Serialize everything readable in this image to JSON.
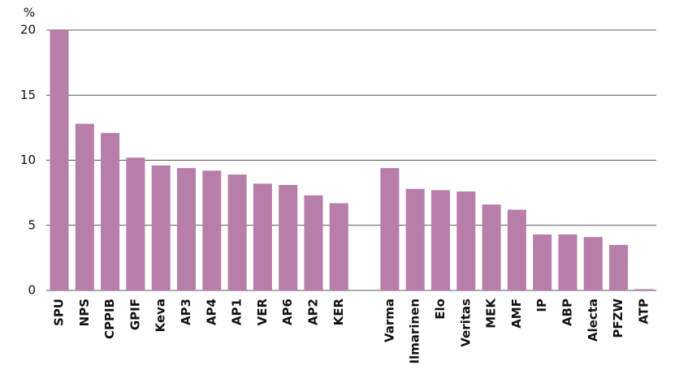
{
  "chart_data": {
    "type": "bar",
    "y_label": "%",
    "categories": [
      "SPU",
      "NPS",
      "CPPIB",
      "GPIF",
      "Keva",
      "AP3",
      "AP4",
      "AP1",
      "VER",
      "AP6",
      "AP2",
      "KER",
      null,
      "Varma",
      "Ilmarinen",
      "Elo",
      "Veritas",
      "MEK",
      "AMF",
      "IP",
      "ABP",
      "Alecta",
      "PFZW",
      "ATP"
    ],
    "values": [
      20,
      12.8,
      12.1,
      10.2,
      9.6,
      9.4,
      9.2,
      8.9,
      8.2,
      8.1,
      7.3,
      6.7,
      null,
      9.4,
      7.8,
      7.7,
      7.6,
      6.6,
      6.2,
      4.3,
      4.3,
      4.1,
      3.5,
      0.1
    ],
    "label_colors": [
      "#111111",
      "#111111",
      "#111111",
      "#111111",
      "#4a90d9",
      "#111111",
      "#111111",
      "#111111",
      "#4a90d9",
      "#111111",
      "#111111",
      "#4a90d9",
      null,
      "#4a90d9",
      "#4a90d9",
      "#4a90d9",
      "#4a90d9",
      "#4a90d9",
      "#111111",
      "#111111",
      "#111111",
      "#111111",
      "#111111",
      "#111111"
    ],
    "color": "#b67ea8",
    "ylim": [
      0,
      20
    ],
    "yticks": [
      0,
      5,
      10,
      15,
      20
    ],
    "grid": true
  }
}
